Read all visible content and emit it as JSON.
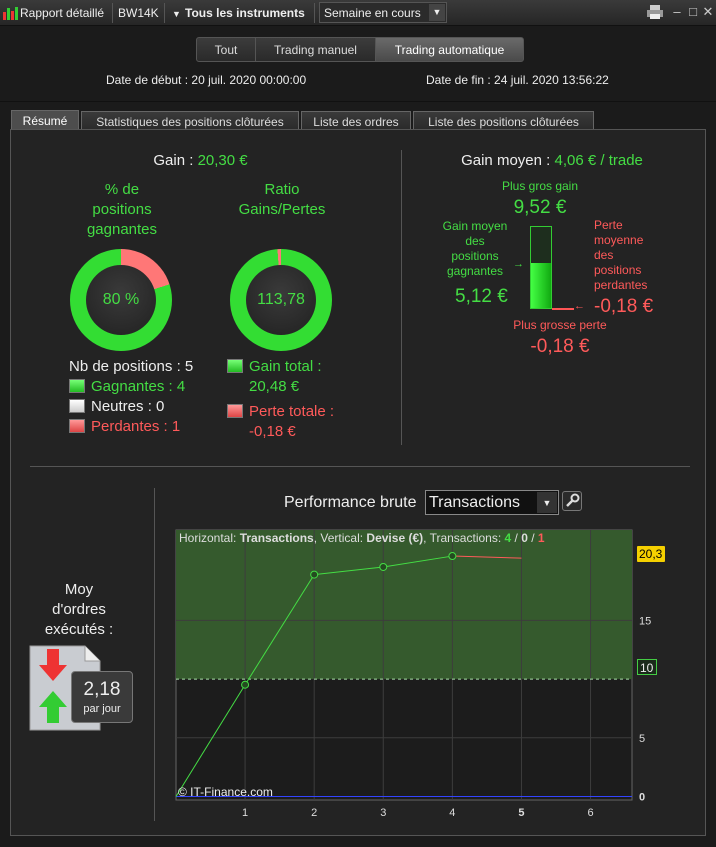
{
  "toolbar": {
    "report_label": "Rapport détaillé",
    "account": "BW14K",
    "instruments": "Tous les instruments",
    "period": "Semaine en cours"
  },
  "modes": [
    "Tout",
    "Trading manuel",
    "Trading automatique"
  ],
  "dates": {
    "start": "Date de début : 20 juil. 2020 00:00:00",
    "end": "Date de fin : 24 juil. 2020 13:56:22"
  },
  "tabs": [
    "Résumé",
    "Statistiques des positions clôturées",
    "Liste des ordres",
    "Liste des positions clôturées"
  ],
  "summary": {
    "gain_label": "Gain :",
    "gain_value": "20,30 €",
    "pct_win_title_l1": "% de",
    "pct_win_title_l2": "positions",
    "pct_win_title_l3": "gagnantes",
    "pct_win_value": "80 %",
    "pct_win_fraction": 0.8,
    "ratio_title_l1": "Ratio",
    "ratio_title_l2": "Gains/Pertes",
    "ratio_value": "113,78",
    "nb_positions_label": "Nb de positions : 5",
    "winners_label": "Gagnantes : 4",
    "neutral_label": "Neutres : 0",
    "losers_label": "Perdantes : 1",
    "gain_total_label": "Gain total :",
    "gain_total_value": "20,48 €",
    "perte_totale_label": "Perte totale :",
    "perte_totale_value": "-0,18 €"
  },
  "avg": {
    "gain_moyen_label": "Gain moyen :",
    "gain_moyen_value": "4,06 € / trade",
    "plus_gros_gain_label": "Plus gros gain",
    "plus_gros_gain_value": "9,52 €",
    "gain_moyen_pos_l1": "Gain moyen",
    "gain_moyen_pos_l2": "des",
    "gain_moyen_pos_l3": "positions",
    "gain_moyen_pos_l4": "gagnantes",
    "gain_moyen_pos_value": "5,12 €",
    "perte_moy_l1": "Perte",
    "perte_moy_l2": "moyenne",
    "perte_moy_l3": "des",
    "perte_moy_l4": "positions",
    "perte_moy_l5": "perdantes",
    "perte_moy_value": "-0,18 €",
    "plus_grosse_perte_label": "Plus grosse perte",
    "plus_grosse_perte_value": "-0,18 €"
  },
  "orders": {
    "title_l1": "Moy",
    "title_l2": "d'ordres",
    "title_l3": "exécutés :",
    "value": "2,18",
    "unit": "par jour"
  },
  "performance": {
    "title": "Performance brute",
    "select_value": "Transactions",
    "info_prefix": "Horizontal: ",
    "info_h": "Transactions",
    "info_mid": ", Vertical: ",
    "info_v": "Devise (€)",
    "info_tx": ", Transactions: ",
    "info_win": "4",
    "info_sep1": " / ",
    "info_neu": "0",
    "info_sep2": " / ",
    "info_lose": "1",
    "copyright": "© IT-Finance.com",
    "last_label": "20,3",
    "threshold_label": "10"
  },
  "chart_data": {
    "type": "line",
    "x": [
      0,
      1,
      2,
      3,
      4,
      5
    ],
    "series": [
      {
        "values": [
          0,
          9.52,
          18.9,
          19.55,
          20.48,
          20.3
        ]
      }
    ],
    "xticks": [
      "1",
      "2",
      "3",
      "4",
      "5",
      "6"
    ],
    "yticks": [
      "0",
      "5",
      "10",
      "15"
    ],
    "xlim": [
      0,
      6.6
    ],
    "ylim": [
      -0.3,
      22.7
    ],
    "threshold": 10,
    "last_value": 20.3,
    "colors": {
      "gain": "#44dd44",
      "loss": "#ff5a5a",
      "zero": "#3344ff",
      "fill": "#355a2d"
    }
  }
}
